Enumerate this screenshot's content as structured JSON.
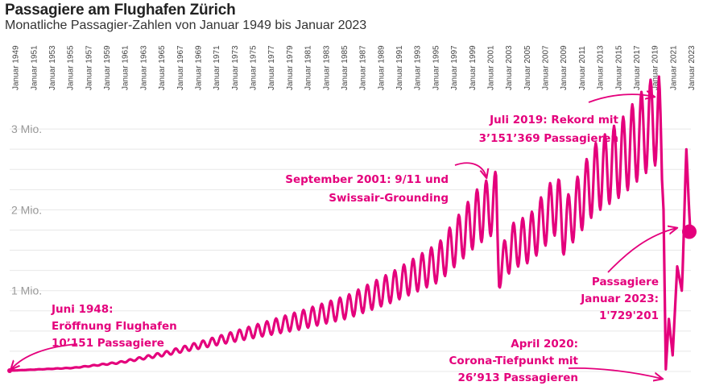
{
  "title": "Passagiere am Flughafen Zürich",
  "subtitle": "Monatliche Passagier-Zahlen von Januar 1949 bis Januar 2023",
  "colors": {
    "line": "#e4007c",
    "grid": "#e8e8e8",
    "text": "#222222"
  },
  "chart_data": {
    "type": "line",
    "title": "Passagiere am Flughafen Zürich",
    "subtitle": "Monatliche Passagier-Zahlen von Januar 1949 bis Januar 2023",
    "xlabel": "",
    "ylabel": "",
    "x_range": [
      "1948-06",
      "2023-01"
    ],
    "ylim": [
      0,
      3300000
    ],
    "grid": true,
    "legend": "none",
    "x_tick_labels": [
      "Januar 1949",
      "Januar 1951",
      "Januar 1953",
      "Januar 1955",
      "Januar 1957",
      "Januar 1959",
      "Januar 1961",
      "Januar 1963",
      "Januar 1965",
      "Januar 1967",
      "Januar 1969",
      "Januar 1971",
      "Januar 1973",
      "Januar 1975",
      "Januar 1977",
      "Januar 1979",
      "Januar 1981",
      "Januar 1983",
      "Januar 1985",
      "Januar 1987",
      "Januar 1989",
      "Januar 1991",
      "Januar 1993",
      "Januar 1995",
      "Januar 1997",
      "Januar 1999",
      "Januar 2001",
      "Januar 2003",
      "Januar 2005",
      "Januar 2007",
      "Januar 2009",
      "Januar 2011",
      "Januar 2013",
      "Januar 2015",
      "Januar 2017",
      "Januar 2019",
      "Januar 2021",
      "Januar 2023"
    ],
    "y_ticks": [
      {
        "value": 1000000,
        "label": "1 Mio."
      },
      {
        "value": 2000000,
        "label": "2 Mio."
      },
      {
        "value": 3000000,
        "label": "3 Mio."
      }
    ],
    "series": [
      {
        "values_note_free": true,
        "points": [
          {
            "x": "1948-06",
            "y": 10151
          },
          {
            "x": "1950-06",
            "y": 20000
          },
          {
            "x": "1955-06",
            "y": 45000
          },
          {
            "x": "1960-06",
            "y": 110000
          },
          {
            "x": "1965-06",
            "y": 220000
          },
          {
            "x": "1970-06",
            "y": 360000
          },
          {
            "x": "1975-06",
            "y": 500000
          },
          {
            "x": "1980-06",
            "y": 640000
          },
          {
            "x": "1985-06",
            "y": 800000
          },
          {
            "x": "1990-06",
            "y": 1050000
          },
          {
            "x": "1995-06",
            "y": 1350000
          },
          {
            "x": "1999-07",
            "y": 1900000
          },
          {
            "x": "2001-09",
            "y": 2100000
          },
          {
            "x": "2002-01",
            "y": 1250000
          },
          {
            "x": "2003-06",
            "y": 1550000
          },
          {
            "x": "2005-06",
            "y": 1650000
          },
          {
            "x": "2008-06",
            "y": 2100000
          },
          {
            "x": "2009-01",
            "y": 1750000
          },
          {
            "x": "2012-06",
            "y": 2380000
          },
          {
            "x": "2015-06",
            "y": 2650000
          },
          {
            "x": "2018-07",
            "y": 3050000
          },
          {
            "x": "2019-07",
            "y": 3151369
          },
          {
            "x": "2020-01",
            "y": 2000000
          },
          {
            "x": "2020-04",
            "y": 26913
          },
          {
            "x": "2020-08",
            "y": 650000
          },
          {
            "x": "2021-01",
            "y": 200000
          },
          {
            "x": "2021-07",
            "y": 1300000
          },
          {
            "x": "2022-01",
            "y": 1000000
          },
          {
            "x": "2022-07",
            "y": 2600000
          },
          {
            "x": "2023-01",
            "y": 1729201
          }
        ]
      }
    ],
    "annotations": [
      {
        "id": "opening",
        "lines": [
          "Juni 1948:",
          "Eröffnung Flughafen",
          "10’151 Passagiere"
        ],
        "at": "1948-06"
      },
      {
        "id": "september2001",
        "lines": [
          "September 2001: 9/11 und",
          "Swissair-Grounding"
        ],
        "at": "2001-09"
      },
      {
        "id": "record2019",
        "lines": [
          "Juli 2019: Rekord mit",
          "3’151’369 Passagieren"
        ],
        "at": "2019-07"
      },
      {
        "id": "january2023",
        "lines": [
          "Passagiere",
          "Januar 2023:",
          "1'729'201"
        ],
        "at": "2023-01"
      },
      {
        "id": "april2020",
        "lines": [
          "April 2020:",
          "Corona-Tiefpunkt mit",
          "26’913 Passagieren"
        ],
        "at": "2020-04"
      }
    ]
  }
}
